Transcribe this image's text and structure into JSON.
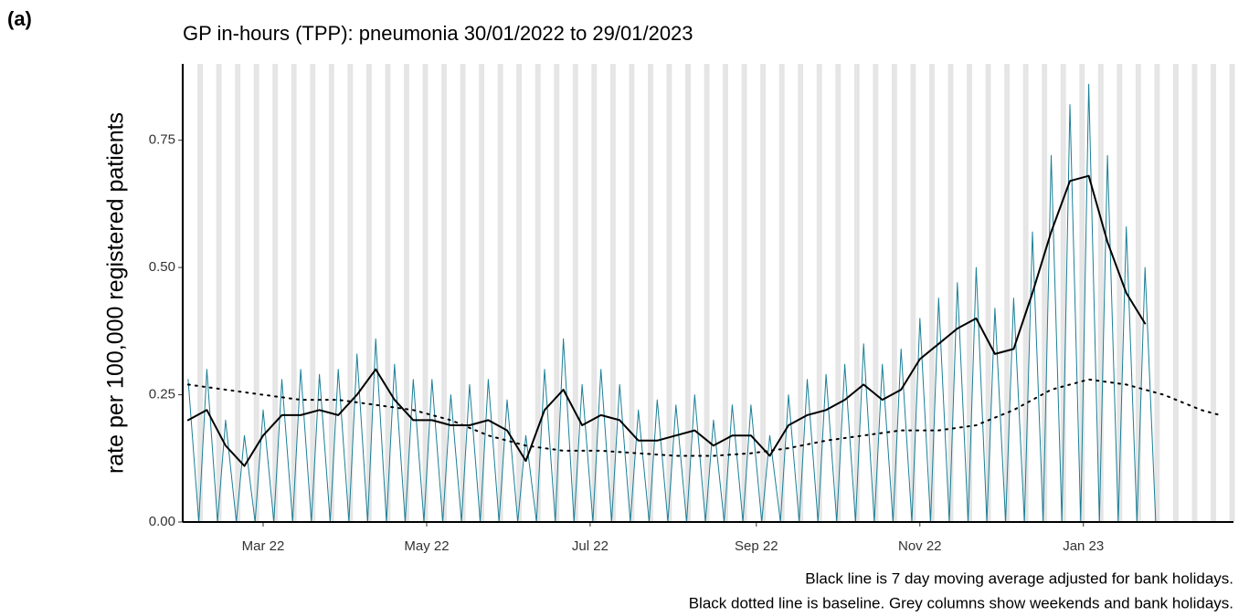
{
  "panel_label": "(a)",
  "chart_data": {
    "type": "line",
    "title": "GP in-hours (TPP): pneumonia 30/01/2022 to 29/01/2023",
    "y_label": "rate per 100,000 registered patients",
    "notes": [
      "Black line is 7 day moving average adjusted for bank holidays.",
      "Black dotted line is baseline. Grey columns show weekends and bank holidays."
    ],
    "xlim": [
      "2022-01-30",
      "2023-02-26"
    ],
    "xticks": [
      {
        "value": "2022-03-01",
        "label": "Mar 22"
      },
      {
        "value": "2022-05-01",
        "label": "May 22"
      },
      {
        "value": "2022-07-01",
        "label": "Jul 22"
      },
      {
        "value": "2022-09-01",
        "label": "Sep 22"
      },
      {
        "value": "2022-11-01",
        "label": "Nov 22"
      },
      {
        "value": "2023-01-01",
        "label": "Jan 23"
      }
    ],
    "ylim": [
      0,
      0.9
    ],
    "yticks": [
      {
        "value": 0,
        "label": "0.00"
      },
      {
        "value": 0.25,
        "label": "0.25"
      },
      {
        "value": 0.5,
        "label": "0.50"
      },
      {
        "value": 0.75,
        "label": "0.75"
      }
    ],
    "weekend_shading": true,
    "shade_color": "#e5e5e5",
    "series": [
      {
        "color": "#1b7f96",
        "width": 1,
        "dash": "none",
        "x": [
          "2022-02-01",
          "2022-02-05",
          "2022-02-08",
          "2022-02-12",
          "2022-02-15",
          "2022-02-19",
          "2022-02-22",
          "2022-02-26",
          "2022-03-01",
          "2022-03-05",
          "2022-03-08",
          "2022-03-12",
          "2022-03-15",
          "2022-03-19",
          "2022-03-22",
          "2022-03-26",
          "2022-03-29",
          "2022-04-02",
          "2022-04-05",
          "2022-04-09",
          "2022-04-12",
          "2022-04-16",
          "2022-04-19",
          "2022-04-23",
          "2022-04-26",
          "2022-04-30",
          "2022-05-03",
          "2022-05-07",
          "2022-05-10",
          "2022-05-14",
          "2022-05-17",
          "2022-05-21",
          "2022-05-24",
          "2022-05-28",
          "2022-05-31",
          "2022-06-04",
          "2022-06-07",
          "2022-06-11",
          "2022-06-14",
          "2022-06-18",
          "2022-06-21",
          "2022-06-25",
          "2022-06-28",
          "2022-07-02",
          "2022-07-05",
          "2022-07-09",
          "2022-07-12",
          "2022-07-16",
          "2022-07-19",
          "2022-07-23",
          "2022-07-26",
          "2022-07-30",
          "2022-08-02",
          "2022-08-06",
          "2022-08-09",
          "2022-08-13",
          "2022-08-16",
          "2022-08-20",
          "2022-08-23",
          "2022-08-27",
          "2022-08-30",
          "2022-09-03",
          "2022-09-06",
          "2022-09-10",
          "2022-09-13",
          "2022-09-17",
          "2022-09-20",
          "2022-09-24",
          "2022-09-27",
          "2022-10-01",
          "2022-10-04",
          "2022-10-08",
          "2022-10-11",
          "2022-10-15",
          "2022-10-18",
          "2022-10-22",
          "2022-10-25",
          "2022-10-29",
          "2022-11-01",
          "2022-11-05",
          "2022-11-08",
          "2022-11-12",
          "2022-11-15",
          "2022-11-19",
          "2022-11-22",
          "2022-11-26",
          "2022-11-29",
          "2022-12-03",
          "2022-12-06",
          "2022-12-10",
          "2022-12-13",
          "2022-12-17",
          "2022-12-20",
          "2022-12-24",
          "2022-12-27",
          "2022-12-31",
          "2023-01-03",
          "2023-01-07",
          "2023-01-10",
          "2023-01-14",
          "2023-01-17",
          "2023-01-21",
          "2023-01-24",
          "2023-01-28"
        ],
        "values": [
          0.28,
          0,
          0.3,
          0,
          0.2,
          0,
          0.17,
          0,
          0.22,
          0,
          0.28,
          0,
          0.3,
          0,
          0.29,
          0,
          0.3,
          0,
          0.33,
          0,
          0.36,
          0,
          0.31,
          0,
          0.28,
          0,
          0.28,
          0,
          0.25,
          0,
          0.27,
          0,
          0.28,
          0,
          0.24,
          0,
          0.17,
          0,
          0.3,
          0,
          0.36,
          0,
          0.27,
          0,
          0.3,
          0,
          0.27,
          0,
          0.22,
          0,
          0.24,
          0,
          0.23,
          0,
          0.25,
          0,
          0.2,
          0,
          0.23,
          0,
          0.23,
          0,
          0.17,
          0,
          0.25,
          0,
          0.28,
          0,
          0.29,
          0,
          0.31,
          0,
          0.35,
          0,
          0.31,
          0,
          0.34,
          0,
          0.4,
          0,
          0.44,
          0,
          0.47,
          0,
          0.5,
          0,
          0.42,
          0,
          0.44,
          0,
          0.57,
          0,
          0.72,
          0,
          0.82,
          0,
          0.86,
          0,
          0.72,
          0,
          0.58,
          0,
          0.5,
          0
        ]
      },
      {
        "color": "#000000",
        "width": 2,
        "dash": "none",
        "x": [
          "2022-02-01",
          "2022-02-08",
          "2022-02-15",
          "2022-02-22",
          "2022-03-01",
          "2022-03-08",
          "2022-03-15",
          "2022-03-22",
          "2022-03-29",
          "2022-04-05",
          "2022-04-12",
          "2022-04-19",
          "2022-04-26",
          "2022-05-03",
          "2022-05-10",
          "2022-05-17",
          "2022-05-24",
          "2022-05-31",
          "2022-06-07",
          "2022-06-14",
          "2022-06-21",
          "2022-06-28",
          "2022-07-05",
          "2022-07-12",
          "2022-07-19",
          "2022-07-26",
          "2022-08-02",
          "2022-08-09",
          "2022-08-16",
          "2022-08-23",
          "2022-08-30",
          "2022-09-06",
          "2022-09-13",
          "2022-09-20",
          "2022-09-27",
          "2022-10-04",
          "2022-10-11",
          "2022-10-18",
          "2022-10-25",
          "2022-11-01",
          "2022-11-08",
          "2022-11-15",
          "2022-11-22",
          "2022-11-29",
          "2022-12-06",
          "2022-12-13",
          "2022-12-20",
          "2022-12-27",
          "2023-01-03",
          "2023-01-10",
          "2023-01-17",
          "2023-01-24"
        ],
        "values": [
          0.2,
          0.22,
          0.15,
          0.11,
          0.17,
          0.21,
          0.21,
          0.22,
          0.21,
          0.25,
          0.3,
          0.24,
          0.2,
          0.2,
          0.19,
          0.19,
          0.2,
          0.18,
          0.12,
          0.22,
          0.26,
          0.19,
          0.21,
          0.2,
          0.16,
          0.16,
          0.17,
          0.18,
          0.15,
          0.17,
          0.17,
          0.13,
          0.19,
          0.21,
          0.22,
          0.24,
          0.27,
          0.24,
          0.26,
          0.32,
          0.35,
          0.38,
          0.4,
          0.33,
          0.34,
          0.45,
          0.57,
          0.67,
          0.68,
          0.55,
          0.45,
          0.39
        ]
      },
      {
        "color": "#000000",
        "width": 2,
        "dash": "2 6",
        "x": [
          "2022-02-01",
          "2022-02-15",
          "2022-03-01",
          "2022-03-15",
          "2022-03-29",
          "2022-04-12",
          "2022-04-26",
          "2022-05-10",
          "2022-05-24",
          "2022-06-07",
          "2022-06-21",
          "2022-07-05",
          "2022-07-19",
          "2022-08-02",
          "2022-08-16",
          "2022-08-30",
          "2022-09-13",
          "2022-09-27",
          "2022-10-11",
          "2022-10-25",
          "2022-11-08",
          "2022-11-22",
          "2022-12-06",
          "2022-12-20",
          "2023-01-03",
          "2023-01-17",
          "2023-01-31",
          "2023-02-14",
          "2023-02-21"
        ],
        "values": [
          0.27,
          0.26,
          0.25,
          0.24,
          0.24,
          0.23,
          0.22,
          0.2,
          0.17,
          0.15,
          0.14,
          0.14,
          0.135,
          0.13,
          0.13,
          0.135,
          0.145,
          0.16,
          0.17,
          0.18,
          0.18,
          0.19,
          0.22,
          0.26,
          0.28,
          0.27,
          0.25,
          0.22,
          0.21
        ]
      }
    ]
  }
}
